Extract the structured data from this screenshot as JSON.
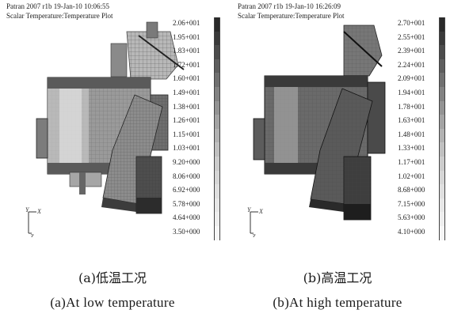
{
  "panel_a": {
    "header_line1": "Patran 2007 r1b 19-Jan-10 10:06:55",
    "header_line2": "Scalar Temperature:Temperature Plot",
    "legend": [
      "2.06+001",
      "1.95+001",
      "1.83+001",
      "1.72+001",
      "1.60+001",
      "1.49+001",
      "1.38+001",
      "1.26+001",
      "1.15+001",
      "1.03+001",
      "9.20+000",
      "8.06+000",
      "6.92+000",
      "5.78+000",
      "4.64+000",
      "3.50+000"
    ],
    "axis": {
      "y": "Y",
      "x": "X",
      "z": "Z"
    },
    "caption_cn": "(a)低温工况",
    "caption_en": "(a)At low temperature"
  },
  "panel_b": {
    "header_line1": "Patran 2007 r1b 19-Jan-10 16:26:09",
    "header_line2": "Scalar Temperature:Temperature Plot",
    "legend": [
      "2.70+001",
      "2.55+001",
      "2.39+001",
      "2.24+001",
      "2.09+001",
      "1.94+001",
      "1.78+001",
      "1.63+001",
      "1.48+001",
      "1.33+001",
      "1.17+001",
      "1.02+001",
      "8.68+000",
      "7.15+000",
      "5.63+000",
      "4.10+000"
    ],
    "axis": {
      "y": "Y",
      "x": "X",
      "z": "Z"
    },
    "caption_cn": "(b)高温工况",
    "caption_en": "(b)At high temperature"
  },
  "colors": {
    "legend_shades": [
      "#2a2a2a",
      "#3a3a3a",
      "#4c4c4c",
      "#5e5e5e",
      "#707070",
      "#828282",
      "#939393",
      "#a3a3a3",
      "#b2b2b2",
      "#c0c0c0",
      "#cccccc",
      "#d6d6d6",
      "#dfdfdf",
      "#e7e7e7",
      "#eeeeee",
      "#f6f6f6"
    ]
  }
}
